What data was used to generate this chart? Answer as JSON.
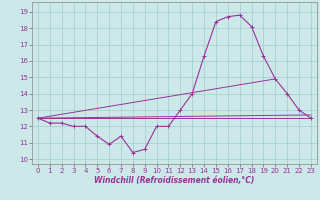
{
  "title": "",
  "xlabel": "Windchill (Refroidissement éolien,°C)",
  "background_color": "#cce8e8",
  "grid_color": "#aad4d4",
  "line_color": "#993399",
  "xlim": [
    -0.5,
    23.5
  ],
  "ylim": [
    9.7,
    19.6
  ],
  "xticks": [
    0,
    1,
    2,
    3,
    4,
    5,
    6,
    7,
    8,
    9,
    10,
    11,
    12,
    13,
    14,
    15,
    16,
    17,
    18,
    19,
    20,
    21,
    22,
    23
  ],
  "yticks": [
    10,
    11,
    12,
    13,
    14,
    15,
    16,
    17,
    18,
    19
  ],
  "hours": [
    0,
    1,
    2,
    3,
    4,
    5,
    6,
    7,
    8,
    9,
    10,
    11,
    12,
    13,
    14,
    15,
    16,
    17,
    18,
    19,
    20,
    21,
    22,
    23
  ],
  "temp": [
    12.5,
    12.2,
    12.2,
    12.0,
    12.0,
    11.4,
    10.9,
    11.4,
    10.4,
    10.6,
    12.0,
    12.0,
    13.0,
    14.0,
    16.3,
    18.4,
    18.7,
    18.8,
    18.1,
    16.3,
    14.9,
    14.0,
    13.0,
    12.5
  ],
  "ref_line1": [
    [
      0,
      23
    ],
    [
      12.5,
      12.5
    ]
  ],
  "ref_line2": [
    [
      0,
      23
    ],
    [
      12.5,
      12.7
    ]
  ],
  "ref_line3": [
    [
      0,
      20
    ],
    [
      12.5,
      14.9
    ]
  ]
}
